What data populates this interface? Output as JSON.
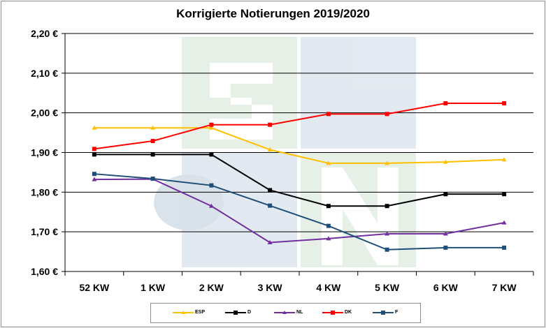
{
  "chart_data": {
    "type": "line",
    "title": "Korrigierte Notierungen 2019/2020",
    "categories": [
      "52 KW",
      "1 KW",
      "2 KW",
      "3 KW",
      "4 KW",
      "5 KW",
      "6 KW",
      "7 KW"
    ],
    "y_ticks": [
      "1,60 €",
      "1,70 €",
      "1,80 €",
      "1,90 €",
      "2,00 €",
      "2,10 €",
      "2,20 €"
    ],
    "ylim": [
      1.6,
      2.2
    ],
    "grid": "horizontal",
    "legend_position": "bottom",
    "series": [
      {
        "name": "ESP",
        "color": "#FFC000",
        "marker": "triangle",
        "values": [
          1.962,
          1.962,
          1.962,
          1.907,
          1.873,
          1.873,
          1.876,
          1.882
        ]
      },
      {
        "name": "D",
        "color": "#000000",
        "marker": "square",
        "values": [
          1.895,
          1.895,
          1.895,
          1.805,
          1.765,
          1.765,
          1.795,
          1.795
        ]
      },
      {
        "name": "NL",
        "color": "#7030A0",
        "marker": "triangle",
        "values": [
          1.832,
          1.833,
          1.765,
          1.673,
          1.683,
          1.695,
          1.695,
          1.723
        ]
      },
      {
        "name": "DK",
        "color": "#FF0000",
        "marker": "square",
        "values": [
          1.909,
          1.929,
          1.97,
          1.97,
          1.997,
          1.997,
          2.024,
          2.024
        ]
      },
      {
        "name": "F",
        "color": "#1F4E79",
        "marker": "square",
        "values": [
          1.846,
          1.834,
          1.817,
          1.766,
          1.715,
          1.655,
          1.66,
          1.66
        ]
      }
    ]
  }
}
